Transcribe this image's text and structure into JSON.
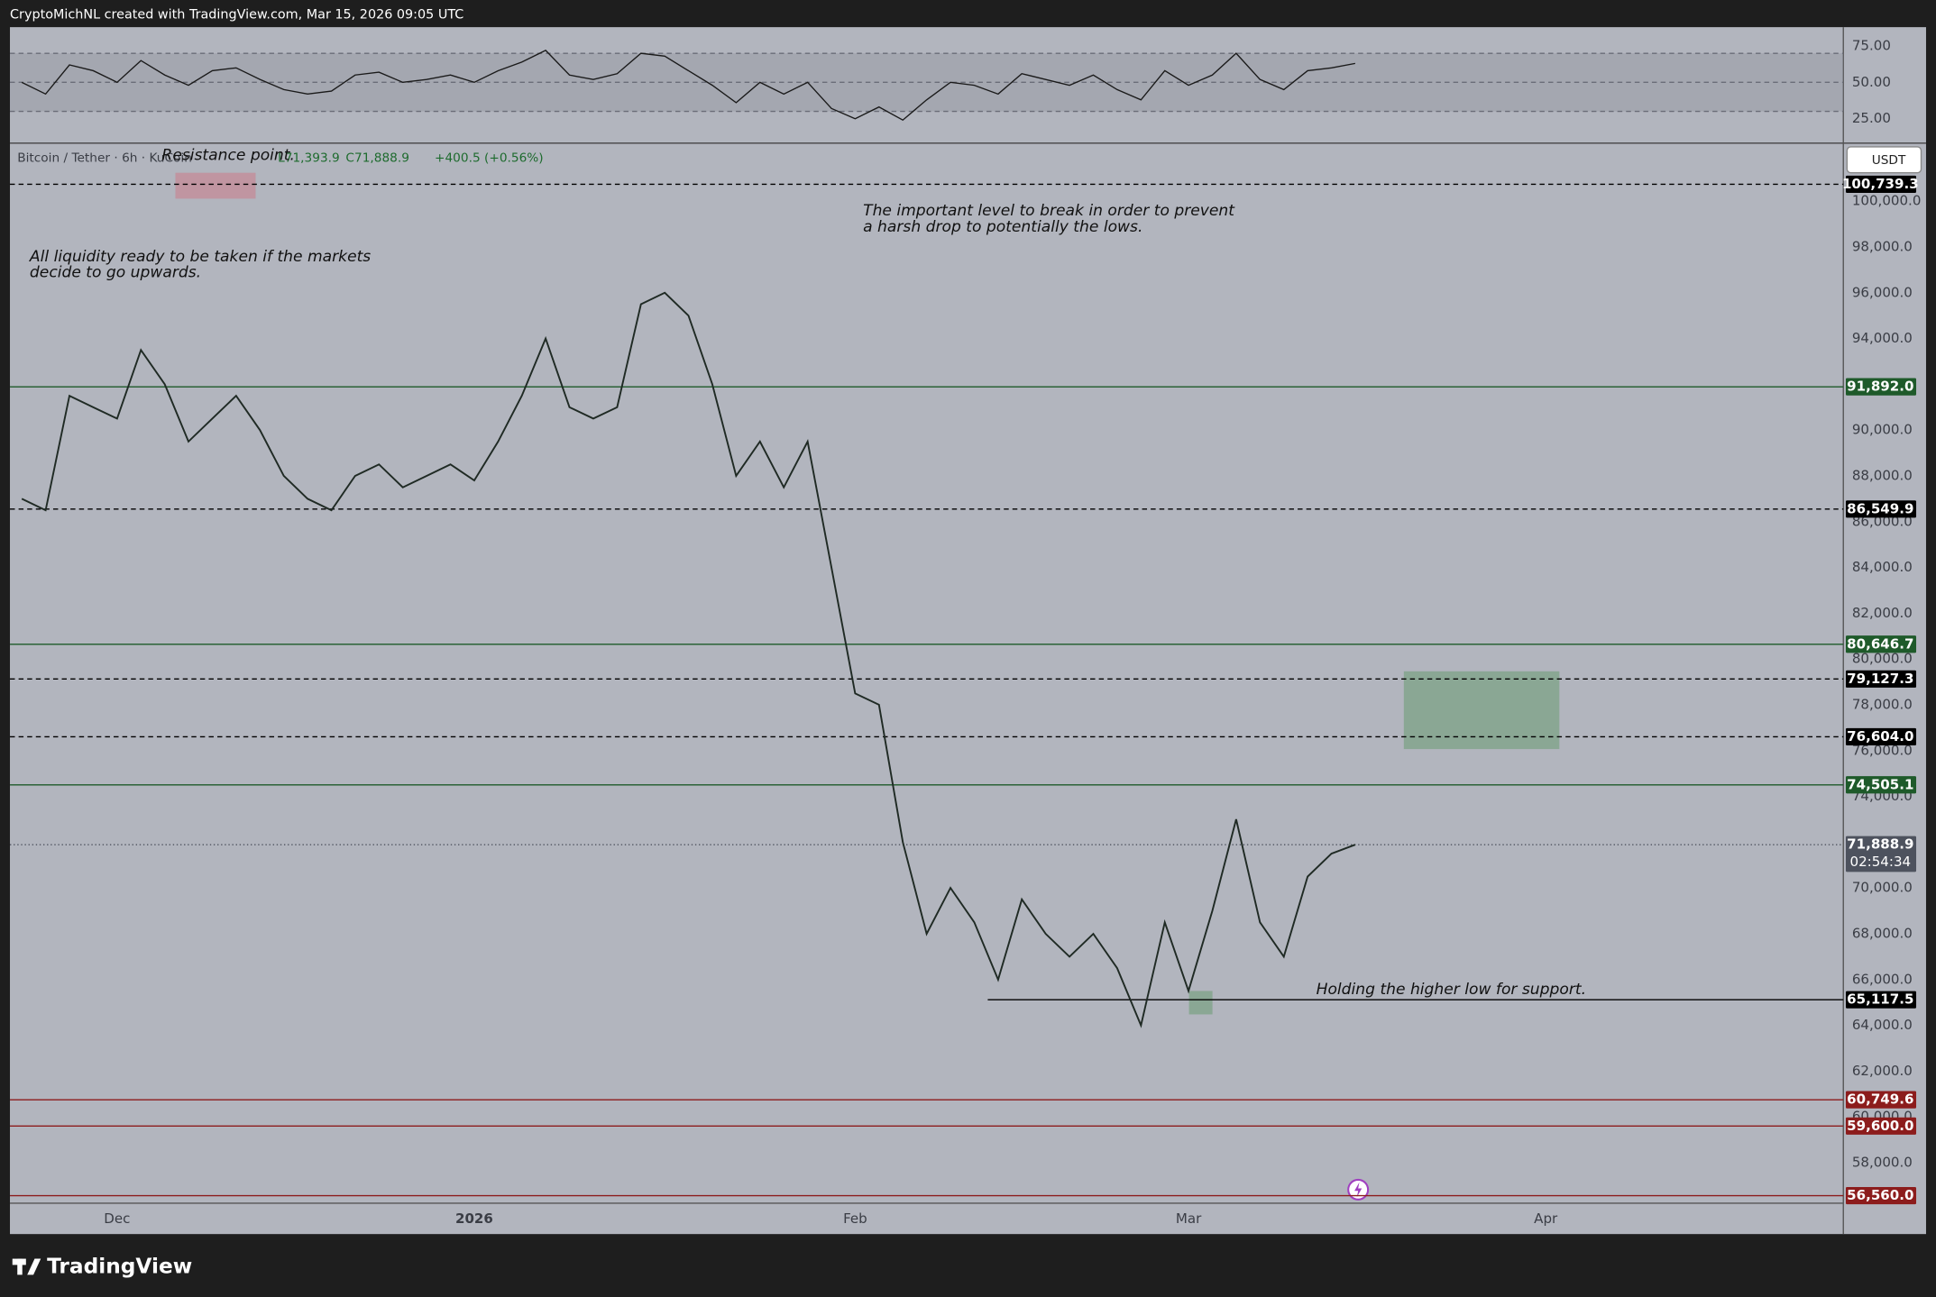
{
  "header": {
    "text": "CryptoMichNL created with TradingView.com, Mar 15, 2026 09:05 UTC"
  },
  "chart_data": {
    "type": "line",
    "title": "Bitcoin / Tether · 6h · KuCoin",
    "ohlc_labels": [
      "L71,393.9",
      "C71,888.9",
      "+400.5 (+0.56%)"
    ],
    "currency": "USDT",
    "countdown": "02:54:34",
    "color": "#1f2a24",
    "categories": [
      null,
      null,
      null,
      null,
      "Dec",
      null,
      null,
      null,
      null,
      null,
      null,
      null,
      null,
      null,
      null,
      null,
      null,
      null,
      null,
      "2026",
      null,
      null,
      null,
      null,
      null,
      null,
      null,
      null,
      null,
      null,
      null,
      null,
      null,
      null,
      null,
      "Feb",
      null,
      null,
      null,
      null,
      null,
      null,
      null,
      null,
      null,
      null,
      null,
      null,
      null,
      "Mar",
      null,
      null,
      null,
      null,
      null,
      null,
      null,
      null,
      null,
      null,
      null,
      null,
      null,
      null,
      "Apr",
      null,
      null,
      null,
      null,
      null,
      null,
      null,
      null,
      null,
      null,
      null,
      null
    ],
    "values": [
      87000,
      86500,
      91500,
      91000,
      90500,
      93500,
      92000,
      89500,
      90500,
      91500,
      90000,
      88000,
      87000,
      86500,
      88000,
      88500,
      87500,
      88000,
      88500,
      87800,
      89500,
      91500,
      94000,
      91000,
      90500,
      91000,
      95500,
      96000,
      95000,
      92000,
      88000,
      89500,
      87500,
      89500,
      84000,
      78500,
      78000,
      72000,
      68000,
      70000,
      68500,
      66000,
      69500,
      68000,
      67000,
      68000,
      66500,
      64000,
      68500,
      65500,
      69000,
      73000,
      68500,
      67000,
      70500,
      71500,
      71888.9,
      null,
      null,
      null,
      null,
      null,
      null,
      null,
      null,
      null,
      null,
      null,
      null,
      null,
      null,
      null,
      null,
      null,
      null,
      null,
      null
    ],
    "ylim": [
      56230,
      102480
    ],
    "yticks": [
      {
        "value": 58000,
        "label": "58,000.0"
      },
      {
        "value": 60000,
        "label": "60,000.0"
      },
      {
        "value": 62000,
        "label": "62,000.0"
      },
      {
        "value": 64000,
        "label": "64,000.0"
      },
      {
        "value": 66000,
        "label": "66,000.0"
      },
      {
        "value": 68000,
        "label": "68,000.0"
      },
      {
        "value": 70000,
        "label": "70,000.0"
      },
      {
        "value": 72000,
        "label": "72,000.0"
      },
      {
        "value": 74000,
        "label": "74,000.0"
      },
      {
        "value": 76000,
        "label": "76,000.0"
      },
      {
        "value": 78000,
        "label": "78,000.0"
      },
      {
        "value": 80000,
        "label": "80,000.0"
      },
      {
        "value": 82000,
        "label": "82,000.0"
      },
      {
        "value": 84000,
        "label": "84,000.0"
      },
      {
        "value": 86000,
        "label": "86,000.0"
      },
      {
        "value": 88000,
        "label": "88,000.0"
      },
      {
        "value": 90000,
        "label": "90,000.0"
      },
      {
        "value": 92000,
        "label": "92,000.0"
      },
      {
        "value": 94000,
        "label": "94,000.0"
      },
      {
        "value": 96000,
        "label": "96,000.0"
      },
      {
        "value": 98000,
        "label": "98,000.0"
      },
      {
        "value": 100000,
        "label": "100,000.0"
      }
    ],
    "grid": false,
    "levels": [
      {
        "value": 100739.3,
        "label": "100,739.3",
        "color": "#000000",
        "style": "dashed"
      },
      {
        "value": 91892.0,
        "label": "91,892.0",
        "color": "#1e5a2a",
        "style": "solid"
      },
      {
        "value": 86549.9,
        "label": "86,549.9",
        "color": "#000000",
        "style": "dashed"
      },
      {
        "value": 80646.7,
        "label": "80,646.7",
        "color": "#1e5a2a",
        "style": "solid"
      },
      {
        "value": 79127.3,
        "label": "79,127.3",
        "color": "#000000",
        "style": "dashed"
      },
      {
        "value": 76604.0,
        "label": "76,604.0",
        "color": "#000000",
        "style": "dashed"
      },
      {
        "value": 74505.1,
        "label": "74,505.1",
        "color": "#1e5a2a",
        "style": "solid"
      },
      {
        "value": 71888.9,
        "label": "71,888.9",
        "color": "#4d525e",
        "style": "dotted"
      },
      {
        "value": 65117.5,
        "label": "65,117.5",
        "color": "#000000",
        "style": "solid"
      },
      {
        "value": 60749.6,
        "label": "60,749.6",
        "color": "#8c1c1c",
        "style": "solid"
      },
      {
        "value": 59600.0,
        "label": "59,600.0",
        "color": "#8c1c1c",
        "style": "solid"
      },
      {
        "value": 56560.0,
        "label": "56,560.0",
        "color": "#8c1c1c",
        "style": "solid"
      }
    ],
    "annotations": [
      [
        "Resistance point."
      ],
      [
        "All liquidity ready to be taken if the markets",
        "decide to go upwards."
      ],
      [
        "The important level to break in order to prevent",
        "a harsh drop to potentially the lows."
      ],
      [
        "Holding the higher low for support."
      ]
    ],
    "rsi": {
      "values": [
        50,
        42,
        62,
        58,
        50,
        65,
        55,
        48,
        58,
        60,
        52,
        45,
        42,
        44,
        55,
        57,
        50,
        52,
        55,
        50,
        58,
        64,
        72,
        55,
        52,
        56,
        70,
        68,
        58,
        48,
        36,
        50,
        42,
        50,
        32,
        25,
        33,
        24,
        38,
        50,
        48,
        42,
        56,
        52,
        48,
        55,
        45,
        38,
        58,
        48,
        55,
        70,
        52,
        45,
        58,
        60,
        63,
        null,
        null,
        null,
        null,
        null,
        null,
        null,
        null,
        null,
        null,
        null,
        null,
        null,
        null,
        null,
        null,
        null,
        null,
        null,
        null
      ],
      "color": "#1a1a1a",
      "ylim": [
        9,
        88
      ],
      "yticks": [
        {
          "value": 25,
          "label": "25.00"
        },
        {
          "value": 50,
          "label": "50.00"
        },
        {
          "value": 75,
          "label": "75.00"
        }
      ],
      "levels": [
        30,
        50,
        70
      ]
    },
    "watermark": "TradingView"
  }
}
